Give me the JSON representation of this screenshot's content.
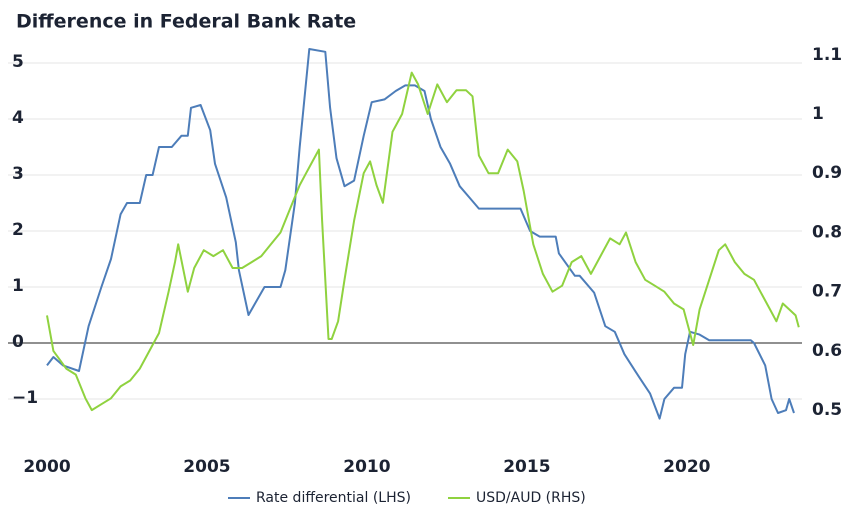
{
  "chart_data": {
    "type": "line",
    "title": "Difference in Federal Bank Rate",
    "xlim": [
      2000,
      2023.6
    ],
    "xticks": [
      2000,
      2005,
      2010,
      2015,
      2020
    ],
    "ylim": [
      -1.6,
      5.4
    ],
    "yticks": [
      {
        "value": -1,
        "label": "−1"
      },
      0,
      1,
      2,
      3,
      4,
      5
    ],
    "y2lim": [
      0.462,
      1.124
    ],
    "y2ticks": [
      0.5,
      0.6,
      0.7,
      0.8,
      0.9,
      1,
      1.1
    ],
    "grid": true,
    "legend": "bottom",
    "series": [
      {
        "name": "Rate differential (LHS)",
        "color": "#4d7db9",
        "axis": "y",
        "x": [
          2000.0,
          2000.2,
          2000.5,
          2001.0,
          2001.3,
          2001.7,
          2002.0,
          2002.3,
          2002.5,
          2002.9,
          2003.1,
          2003.3,
          2003.5,
          2003.9,
          2004.2,
          2004.4,
          2004.5,
          2004.8,
          2005.1,
          2005.25,
          2005.6,
          2005.9,
          2006.0,
          2006.3,
          2006.5,
          2006.8,
          2007.3,
          2007.45,
          2007.75,
          2007.9,
          2008.2,
          2008.7,
          2008.85,
          2009.05,
          2009.3,
          2009.6,
          2009.9,
          2010.15,
          2010.55,
          2010.9,
          2011.2,
          2011.5,
          2011.8,
          2012.0,
          2012.3,
          2012.6,
          2012.9,
          2013.2,
          2013.5,
          2014.15,
          2014.8,
          2015.1,
          2015.4,
          2015.9,
          2016.0,
          2016.5,
          2016.65,
          2017.1,
          2017.45,
          2017.75,
          2018.05,
          2018.5,
          2018.85,
          2019.15,
          2019.3,
          2019.6,
          2019.85,
          2019.95,
          2020.1,
          2020.4,
          2020.7,
          2022.0,
          2022.1,
          2022.45,
          2022.65,
          2022.85,
          2023.1,
          2023.2,
          2023.35
        ],
        "values": [
          -0.4,
          -0.25,
          -0.4,
          -0.5,
          0.3,
          1.0,
          1.5,
          2.3,
          2.5,
          2.5,
          3.0,
          3.0,
          3.5,
          3.5,
          3.7,
          3.7,
          4.2,
          4.25,
          3.8,
          3.2,
          2.6,
          1.8,
          1.3,
          0.5,
          0.7,
          1.0,
          1.0,
          1.3,
          2.5,
          3.5,
          5.25,
          5.2,
          4.2,
          3.3,
          2.8,
          2.9,
          3.7,
          4.3,
          4.35,
          4.5,
          4.6,
          4.6,
          4.5,
          4.0,
          3.5,
          3.2,
          2.8,
          2.6,
          2.4,
          2.4,
          2.4,
          2.0,
          1.9,
          1.9,
          1.6,
          1.2,
          1.2,
          0.9,
          0.3,
          0.2,
          -0.2,
          -0.6,
          -0.9,
          -1.35,
          -1.0,
          -0.8,
          -0.8,
          -0.2,
          0.2,
          0.15,
          0.05,
          0.05,
          0,
          -0.4,
          -1.0,
          -1.25,
          -1.2,
          -1.0,
          -1.25
        ]
      },
      {
        "name": "USD/AUD (RHS)",
        "color": "#8fd23f",
        "axis": "y2",
        "x": [
          2000.0,
          2000.2,
          2000.6,
          2000.9,
          2001.2,
          2001.4,
          2001.7,
          2002.0,
          2002.3,
          2002.6,
          2002.9,
          2003.2,
          2003.5,
          2003.8,
          2004.0,
          2004.1,
          2004.4,
          2004.6,
          2004.9,
          2005.2,
          2005.5,
          2005.8,
          2006.1,
          2006.4,
          2006.7,
          2007.0,
          2007.3,
          2007.6,
          2007.9,
          2008.1,
          2008.3,
          2008.5,
          2008.6,
          2008.8,
          2008.9,
          2009.1,
          2009.3,
          2009.6,
          2009.9,
          2010.1,
          2010.3,
          2010.5,
          2010.8,
          2011.1,
          2011.4,
          2011.6,
          2011.9,
          2012.2,
          2012.5,
          2012.8,
          2013.1,
          2013.3,
          2013.5,
          2013.8,
          2014.1,
          2014.4,
          2014.7,
          2014.9,
          2015.2,
          2015.5,
          2015.8,
          2016.1,
          2016.4,
          2016.7,
          2017.0,
          2017.3,
          2017.6,
          2017.9,
          2018.1,
          2018.4,
          2018.7,
          2019.0,
          2019.3,
          2019.6,
          2019.9,
          2020.2,
          2020.4,
          2020.7,
          2021.0,
          2021.2,
          2021.5,
          2021.8,
          2022.1,
          2022.3,
          2022.6,
          2022.8,
          2023.0,
          2023.2,
          2023.4,
          2023.5
        ],
        "values": [
          0.66,
          0.6,
          0.57,
          0.56,
          0.52,
          0.5,
          0.51,
          0.52,
          0.54,
          0.55,
          0.57,
          0.6,
          0.63,
          0.7,
          0.75,
          0.78,
          0.7,
          0.74,
          0.77,
          0.76,
          0.77,
          0.74,
          0.74,
          0.75,
          0.76,
          0.78,
          0.8,
          0.84,
          0.88,
          0.9,
          0.92,
          0.94,
          0.82,
          0.62,
          0.62,
          0.65,
          0.72,
          0.82,
          0.9,
          0.92,
          0.88,
          0.85,
          0.97,
          1.0,
          1.07,
          1.05,
          1.0,
          1.05,
          1.02,
          1.04,
          1.04,
          1.03,
          0.93,
          0.9,
          0.9,
          0.94,
          0.92,
          0.87,
          0.78,
          0.73,
          0.7,
          0.71,
          0.75,
          0.76,
          0.73,
          0.76,
          0.79,
          0.78,
          0.8,
          0.75,
          0.72,
          0.71,
          0.7,
          0.68,
          0.67,
          0.61,
          0.67,
          0.72,
          0.77,
          0.78,
          0.75,
          0.73,
          0.72,
          0.7,
          0.67,
          0.65,
          0.68,
          0.67,
          0.66,
          0.64
        ]
      }
    ]
  }
}
